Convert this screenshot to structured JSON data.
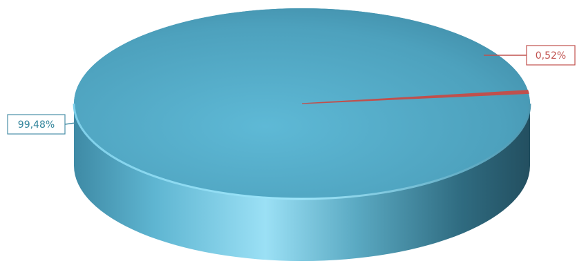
{
  "chart_data": {
    "type": "pie",
    "style": "3d",
    "categories": [
      "",
      ""
    ],
    "values": [
      99.48,
      0.52
    ],
    "labels": [
      "99,48%",
      "0,52%"
    ],
    "colors": [
      "#4aa3bf",
      "#c0504d"
    ],
    "legend": "none"
  }
}
